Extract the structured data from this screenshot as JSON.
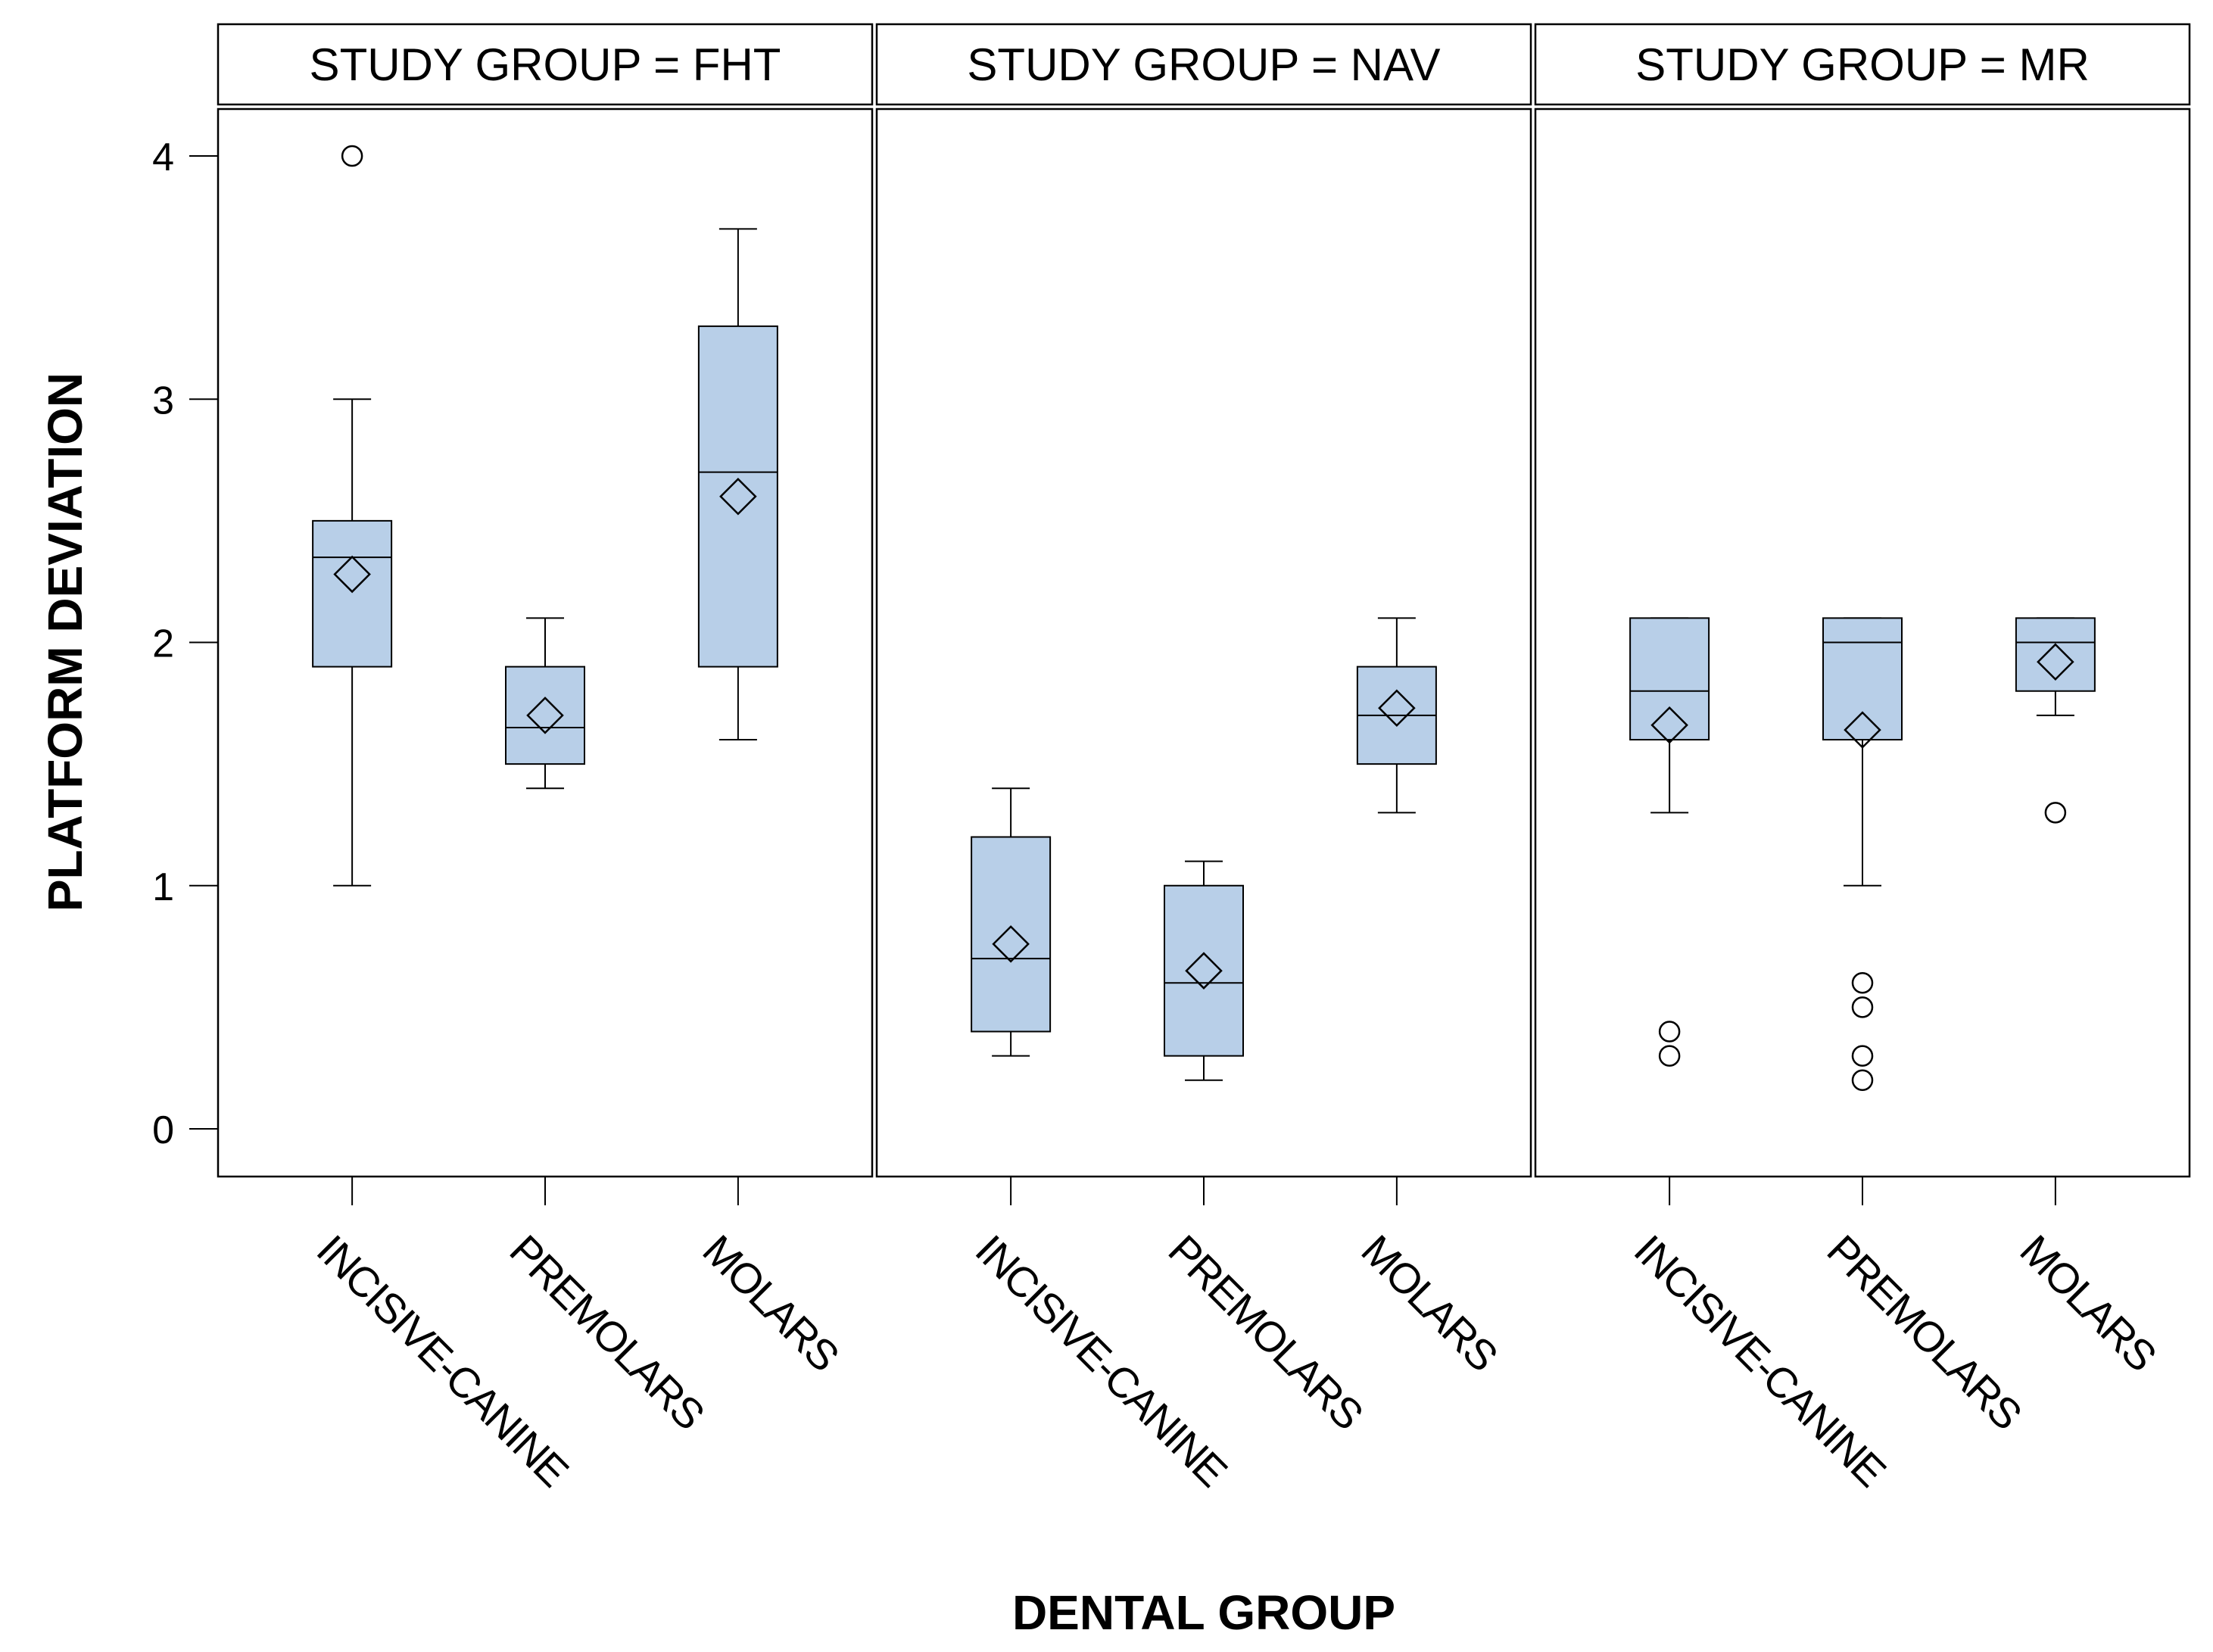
{
  "chart_data": {
    "type": "boxplot",
    "xlabel": "DENTAL GROUP",
    "ylabel": "PLATFORM DEVIATION",
    "ylim": [
      -0.2,
      4.2
    ],
    "yticks": [
      0,
      1,
      2,
      3,
      4
    ],
    "categories": [
      "INCISIVE-CANINE",
      "PREMOLARS",
      "MOLARS"
    ],
    "colors": {
      "box_fill": "#b8cfe8",
      "line": "#000000"
    },
    "panels": [
      {
        "title": "STUDY GROUP = FHT",
        "boxes": [
          {
            "category": "INCISIVE-CANINE",
            "whisker_low": 1.0,
            "q1": 1.9,
            "median": 2.35,
            "q3": 2.5,
            "whisker_high": 3.0,
            "mean": 2.28,
            "outliers": [
              4.0
            ]
          },
          {
            "category": "PREMOLARS",
            "whisker_low": 1.4,
            "q1": 1.5,
            "median": 1.65,
            "q3": 1.9,
            "whisker_high": 2.1,
            "mean": 1.7,
            "outliers": []
          },
          {
            "category": "MOLARS",
            "whisker_low": 1.6,
            "q1": 1.9,
            "median": 2.7,
            "q3": 3.3,
            "whisker_high": 3.7,
            "mean": 2.6,
            "outliers": []
          }
        ]
      },
      {
        "title": "STUDY GROUP = NAV",
        "boxes": [
          {
            "category": "INCISIVE-CANINE",
            "whisker_low": 0.3,
            "q1": 0.4,
            "median": 0.7,
            "q3": 1.2,
            "whisker_high": 1.4,
            "mean": 0.76,
            "outliers": []
          },
          {
            "category": "PREMOLARS",
            "whisker_low": 0.2,
            "q1": 0.3,
            "median": 0.6,
            "q3": 1.0,
            "whisker_high": 1.1,
            "mean": 0.65,
            "outliers": []
          },
          {
            "category": "MOLARS",
            "whisker_low": 1.3,
            "q1": 1.5,
            "median": 1.7,
            "q3": 1.9,
            "whisker_high": 2.1,
            "mean": 1.73,
            "outliers": []
          }
        ]
      },
      {
        "title": "STUDY GROUP = MR",
        "boxes": [
          {
            "category": "INCISIVE-CANINE",
            "whisker_low": 1.3,
            "q1": 1.6,
            "median": 1.8,
            "q3": 2.1,
            "whisker_high": 2.1,
            "mean": 1.66,
            "outliers": [
              0.4,
              0.3
            ]
          },
          {
            "category": "PREMOLARS",
            "whisker_low": 1.0,
            "q1": 1.6,
            "median": 2.0,
            "q3": 2.1,
            "whisker_high": 2.1,
            "mean": 1.64,
            "outliers": [
              0.6,
              0.5,
              0.3,
              0.2
            ]
          },
          {
            "category": "MOLARS",
            "whisker_low": 1.7,
            "q1": 1.8,
            "median": 2.0,
            "q3": 2.1,
            "whisker_high": 2.1,
            "mean": 1.92,
            "outliers": [
              1.3
            ]
          }
        ]
      }
    ]
  }
}
